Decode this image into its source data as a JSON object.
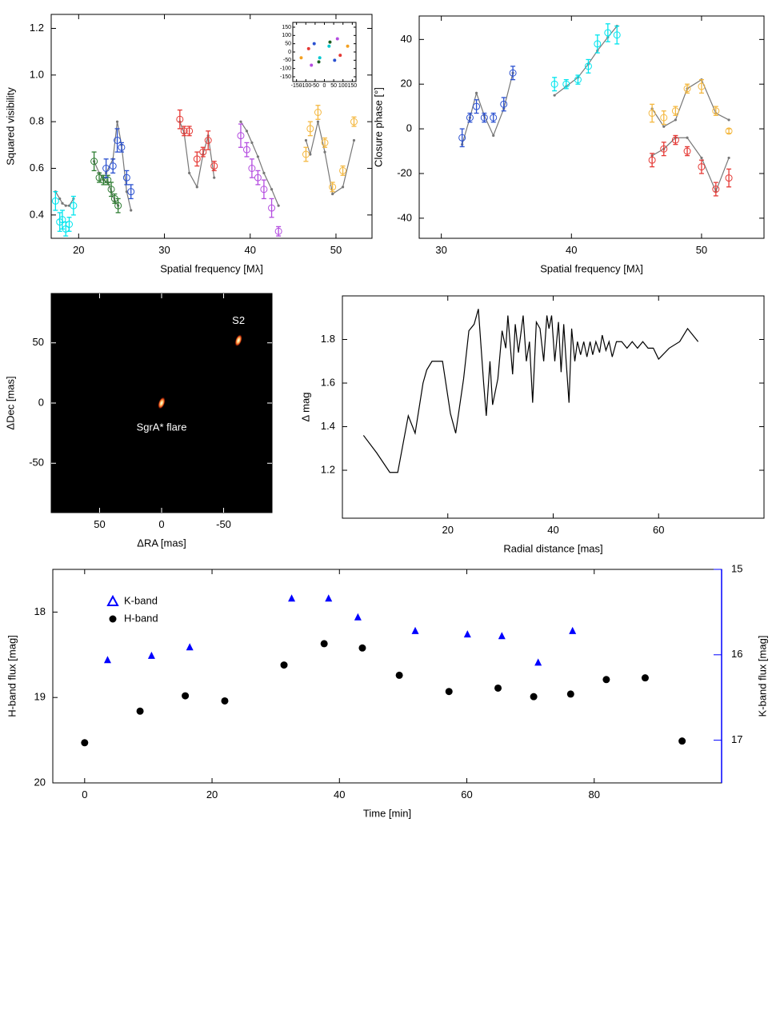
{
  "chart_data": [
    {
      "type": "errorbar",
      "xlabel": "Spatial frequency [Mλ]",
      "ylabel": "Squared visibility",
      "xlim": [
        16.8,
        54.2
      ],
      "ylim": [
        0.3,
        1.26
      ],
      "xticks": [
        20,
        30,
        40,
        50
      ],
      "yticks": [
        0.4,
        0.6,
        0.8,
        {
          "value": 1,
          "label": "1.0"
        },
        1.2
      ],
      "model_color": "#777777",
      "series": [
        {
          "color": "#00e5ee",
          "x": [
            17.3,
            17.8,
            18.1,
            18.5,
            18.9,
            19.4
          ],
          "values": [
            0.46,
            0.37,
            0.38,
            0.34,
            0.36,
            0.44
          ],
          "errors": [
            0.04,
            0.04,
            0.04,
            0.03,
            0.03,
            0.04
          ],
          "model": [
            0.5,
            0.47,
            0.45,
            0.44,
            0.44,
            0.47
          ]
        },
        {
          "color": "#2e7d32",
          "x": [
            21.8,
            22.4,
            22.9,
            23.4,
            23.8,
            24.2,
            24.6
          ],
          "values": [
            0.63,
            0.56,
            0.55,
            0.55,
            0.51,
            0.47,
            0.44
          ],
          "errors": [
            0.04,
            0.02,
            0.02,
            0.02,
            0.03,
            0.02,
            0.03
          ],
          "model": [
            0.63,
            0.58,
            0.55,
            0.54,
            0.5,
            0.46,
            0.44
          ]
        },
        {
          "color": "#2a50d0",
          "x": [
            23.2,
            24.0,
            24.5,
            25.0,
            25.6,
            26.1
          ],
          "values": [
            0.6,
            0.61,
            0.72,
            0.69,
            0.56,
            0.5
          ],
          "errors": [
            0.04,
            0.03,
            0.05,
            0.02,
            0.03,
            0.03
          ],
          "model": [
            0.58,
            0.64,
            0.8,
            0.7,
            0.5,
            0.42
          ]
        },
        {
          "color": "#e53935",
          "x": [
            31.8,
            32.3,
            32.9,
            33.8,
            34.5,
            35.1,
            35.8
          ],
          "values": [
            0.81,
            0.76,
            0.76,
            0.64,
            0.67,
            0.72,
            0.61
          ],
          "errors": [
            0.04,
            0.02,
            0.02,
            0.03,
            0.02,
            0.04,
            0.02
          ],
          "model": [
            0.8,
            0.75,
            0.58,
            0.52,
            0.66,
            0.74,
            0.56
          ]
        },
        {
          "color": "#b44de0",
          "x": [
            38.9,
            39.6,
            40.2,
            40.9,
            41.6,
            42.5,
            43.3
          ],
          "values": [
            0.74,
            0.68,
            0.6,
            0.56,
            0.51,
            0.43,
            0.33
          ],
          "errors": [
            0.05,
            0.03,
            0.04,
            0.03,
            0.04,
            0.04,
            0.02
          ],
          "model": [
            0.8,
            0.76,
            0.71,
            0.65,
            0.58,
            0.51,
            0.44
          ]
        },
        {
          "color": "#f4b840",
          "x": [
            46.5,
            47.0,
            47.9,
            48.7,
            49.6,
            50.8,
            52.1
          ],
          "values": [
            0.66,
            0.77,
            0.84,
            0.71,
            0.52,
            0.59,
            0.8
          ],
          "errors": [
            0.03,
            0.03,
            0.03,
            0.02,
            0.02,
            0.02,
            0.02
          ],
          "model": [
            0.72,
            0.66,
            0.8,
            0.67,
            0.49,
            0.52,
            0.72
          ]
        }
      ]
    },
    {
      "type": "scatter",
      "xlim": [
        -170,
        170
      ],
      "ylim": [
        -179,
        179
      ],
      "xticks": [
        -150,
        -100,
        -50,
        0,
        50,
        100,
        150
      ],
      "yticks": [
        -150,
        -100,
        -50,
        0,
        50,
        100,
        150
      ],
      "series": [
        {
          "color": "#2a50d0",
          "x": [
            -55,
            55
          ],
          "values": [
            50,
            -50
          ]
        },
        {
          "color": "#e53935",
          "x": [
            -85,
            85
          ],
          "values": [
            20,
            -20
          ]
        },
        {
          "color": "#00c8d0",
          "x": [
            -25,
            25
          ],
          "values": [
            -35,
            35
          ]
        },
        {
          "color": "#1b5e20",
          "x": [
            -30,
            30
          ],
          "values": [
            -60,
            60
          ]
        },
        {
          "color": "#b44de0",
          "x": [
            -70,
            70
          ],
          "values": [
            -80,
            80
          ]
        },
        {
          "color": "#f4a020",
          "x": [
            -125,
            125
          ],
          "values": [
            -35,
            35
          ]
        }
      ]
    },
    {
      "type": "errorbar",
      "xlabel": "Spatial frequency [Mλ]",
      "ylabel": "Closure phase [°]",
      "xlim": [
        28.3,
        54.8
      ],
      "ylim": [
        -49,
        50.5
      ],
      "xticks": [
        30,
        40,
        50
      ],
      "yticks": [
        -40,
        -20,
        0,
        20,
        40
      ],
      "model_color": "#777777",
      "series": [
        {
          "color": "#2a50d0",
          "x": [
            31.6,
            32.2,
            32.7,
            33.3,
            34.0,
            34.8,
            35.5
          ],
          "values": [
            -4,
            5,
            10,
            5,
            5,
            11,
            25
          ],
          "errors": [
            4,
            2,
            3,
            2,
            2,
            3,
            3
          ],
          "model": [
            -7,
            5,
            16,
            6,
            -3,
            9,
            25
          ]
        },
        {
          "color": "#00e5ee",
          "x": [
            38.7,
            39.6,
            40.5,
            41.3,
            42.0,
            42.8,
            43.5
          ],
          "values": [
            20,
            20,
            22,
            28,
            38,
            43,
            42
          ],
          "errors": [
            3,
            2,
            2,
            3,
            4,
            4,
            4
          ],
          "model": [
            15,
            19,
            23,
            29,
            35,
            41,
            46
          ]
        },
        {
          "color": "#f4b840",
          "x": [
            46.2,
            47.1,
            48.0,
            48.9,
            50.0,
            51.1,
            52.1
          ],
          "values": [
            7,
            5,
            8,
            18,
            19,
            8,
            -1
          ],
          "errors": [
            4,
            3,
            2,
            2,
            3,
            2,
            1
          ],
          "model": [
            9,
            1,
            4,
            18,
            22,
            7,
            4
          ]
        },
        {
          "color": "#e53935",
          "x": [
            46.2,
            47.1,
            48.0,
            48.9,
            50.0,
            51.1,
            52.1
          ],
          "values": [
            -14,
            -9,
            -5,
            -10,
            -17,
            -27,
            -22
          ],
          "errors": [
            3,
            3,
            2,
            2,
            3,
            3,
            4
          ],
          "model": [
            -12,
            -9,
            -4,
            -4,
            -13,
            -28,
            -13
          ]
        }
      ]
    },
    {
      "type": "image",
      "xlabel": "ΔRA [mas]",
      "ylabel": "ΔDec [mas]",
      "xlim": [
        89,
        -89
      ],
      "ylim": [
        -91,
        91
      ],
      "xticks": [
        50,
        0,
        -50
      ],
      "yticks": [
        -50,
        0,
        50
      ],
      "sources": [
        {
          "label": "S2",
          "x": -62,
          "y": 52
        },
        {
          "label": "SgrA* flare",
          "x": 0,
          "y": 0
        }
      ]
    },
    {
      "type": "line",
      "xlabel": "Radial distance [mas]",
      "ylabel": "Δ mag",
      "color": "#000000",
      "xlim": [
        0,
        80
      ],
      "ylim": [
        0.98,
        2.0
      ],
      "xticks": [
        20,
        40,
        60
      ],
      "yticks": [
        1.2,
        1.4,
        1.6,
        1.8
      ],
      "x": [
        4,
        6.5,
        9,
        10.5,
        12.5,
        13.8,
        15.3,
        16,
        17,
        19,
        20.5,
        21.5,
        23,
        24,
        25,
        25.8,
        26.8,
        27.3,
        28,
        28.5,
        29.5,
        30.3,
        31,
        31.4,
        32.3,
        32.8,
        33.4,
        34.3,
        34.9,
        35.5,
        36.1,
        36.8,
        37.5,
        38.2,
        38.8,
        39.2,
        39.7,
        40.3,
        41,
        41.5,
        42,
        42.4,
        43,
        43.5,
        44.1,
        44.6,
        45.2,
        45.8,
        46.4,
        47,
        47.5,
        48.1,
        48.8,
        49.3,
        50,
        50.6,
        51.2,
        52,
        53,
        54,
        55,
        56,
        57,
        58,
        59,
        60,
        62,
        64,
        65.5,
        67.5
      ],
      "values": [
        1.36,
        1.28,
        1.19,
        1.19,
        1.45,
        1.37,
        1.6,
        1.66,
        1.7,
        1.7,
        1.46,
        1.37,
        1.62,
        1.84,
        1.87,
        1.94,
        1.6,
        1.45,
        1.7,
        1.5,
        1.62,
        1.84,
        1.76,
        1.91,
        1.64,
        1.87,
        1.74,
        1.91,
        1.7,
        1.79,
        1.51,
        1.88,
        1.85,
        1.7,
        1.91,
        1.85,
        1.91,
        1.7,
        1.88,
        1.65,
        1.87,
        1.72,
        1.51,
        1.85,
        1.7,
        1.79,
        1.73,
        1.79,
        1.72,
        1.79,
        1.73,
        1.79,
        1.74,
        1.82,
        1.75,
        1.79,
        1.72,
        1.79,
        1.79,
        1.76,
        1.79,
        1.76,
        1.79,
        1.76,
        1.76,
        1.71,
        1.76,
        1.79,
        1.85,
        1.79
      ]
    },
    {
      "type": "scatter",
      "xlabel": "Time [min]",
      "ylabel": "H-band flux [mag]",
      "y2label": "K-band flux [mag]",
      "xlim": [
        -5,
        100
      ],
      "ylim": [
        20,
        17.5
      ],
      "y2lim": [
        17.5,
        15
      ],
      "xticks": [
        0,
        20,
        40,
        60,
        80
      ],
      "yticks": [
        18,
        19,
        20
      ],
      "y2ticks": [
        15,
        16,
        17
      ],
      "y2color": "#0000ff",
      "legend": "upper left",
      "series": [
        {
          "name": "K-band",
          "color": "#0000ff",
          "marker": "triangle",
          "axis": "y2",
          "x": [
            3.6,
            10.5,
            16.5,
            32.5,
            38.3,
            42.9,
            51.9,
            60.1,
            65.5,
            71.2,
            76.6
          ],
          "values": [
            16.06,
            16.01,
            15.91,
            15.34,
            15.34,
            15.56,
            15.72,
            15.76,
            15.78,
            16.09,
            15.72
          ]
        },
        {
          "name": "H-band",
          "color": "#000000",
          "marker": "circle",
          "x": [
            0,
            8.7,
            15.8,
            22,
            31.3,
            37.6,
            43.6,
            49.4,
            57.2,
            64.9,
            70.5,
            76.3,
            81.9,
            88,
            93.8
          ],
          "values": [
            19.53,
            19.16,
            18.98,
            19.04,
            18.62,
            18.37,
            18.42,
            18.74,
            18.93,
            18.89,
            18.99,
            18.96,
            18.79,
            18.77,
            19.51
          ]
        }
      ]
    }
  ]
}
